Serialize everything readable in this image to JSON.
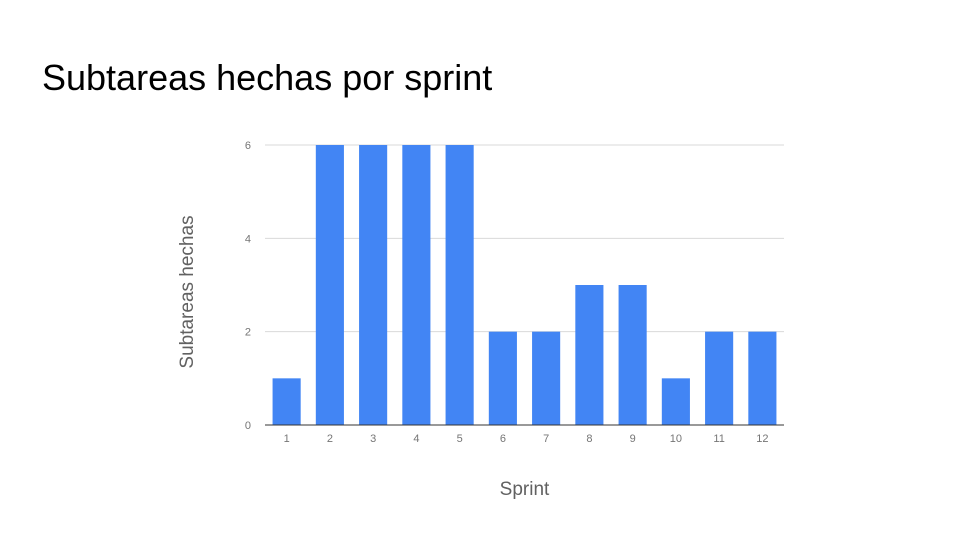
{
  "slide": {
    "title": "Subtareas hechas por sprint"
  },
  "chart_data": {
    "type": "bar",
    "title": "",
    "xlabel": "Sprint",
    "ylabel": "Subtareas hechas",
    "categories": [
      "1",
      "2",
      "3",
      "4",
      "5",
      "6",
      "7",
      "8",
      "9",
      "10",
      "11",
      "12"
    ],
    "series": [
      {
        "values": [
          1,
          6,
          6,
          6,
          6,
          2,
          2,
          3,
          3,
          1,
          2,
          2
        ]
      }
    ],
    "ylim": [
      0,
      6
    ],
    "yticks": [
      0,
      2,
      4,
      6
    ],
    "grid": true,
    "legend": "none",
    "colors": {
      "bar": "#4285f4",
      "grid": "#d9d9d9",
      "baseline": "#333333"
    }
  }
}
